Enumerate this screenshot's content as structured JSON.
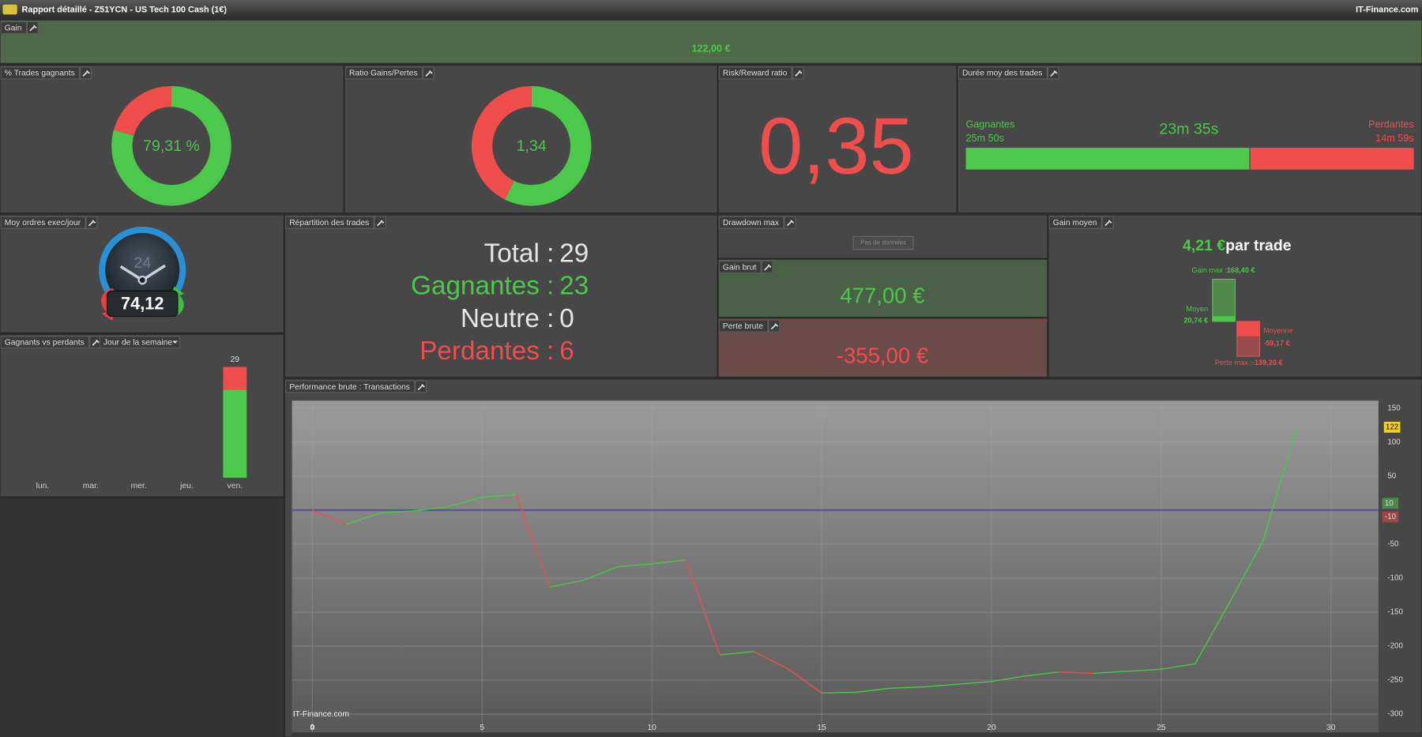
{
  "window": {
    "title": "Rapport détaillé - Z51YCN - US Tech 100 Cash (1€)",
    "brand": "IT-Finance.com"
  },
  "panels": {
    "gain": {
      "label": "Gain",
      "value": "122,00 €"
    },
    "win_rate": {
      "label": "% Trades gagnants",
      "chart": {
        "type": "donut",
        "values": [
          79.31,
          20.69
        ],
        "colors": [
          "#4cc84a",
          "#f04d4d"
        ],
        "center_label": "79,31 %"
      }
    },
    "ratio": {
      "label": "Ratio Gains/Pertes",
      "chart": {
        "type": "donut",
        "values": [
          477,
          355
        ],
        "colors": [
          "#4cc84a",
          "#f04d4d"
        ],
        "center_label": "1,34"
      }
    },
    "risk_reward": {
      "label": "Risk/Reward ratio",
      "value": "0,35"
    },
    "duration": {
      "label": "Durée moy des trades",
      "winning_label": "Gagnantes",
      "winning_value": "25m 50s",
      "average": "23m 35s",
      "losing_label": "Perdantes",
      "losing_value": "14m 59s",
      "chart": {
        "type": "split-bar",
        "values": [
          1550,
          899
        ],
        "colors": [
          "#4cc84a",
          "#f04d4d"
        ]
      }
    },
    "orders": {
      "label": "Moy ordres exec/jour",
      "value": "74,12",
      "dial": "24"
    },
    "winners_losers": {
      "label": "Gagnants vs perdants",
      "filter": "Jour de la semaine",
      "chart": {
        "type": "stacked-bar",
        "categories": [
          "lun.",
          "mar.",
          "mer.",
          "jeu.",
          "ven."
        ],
        "series": [
          {
            "color": "#4cc84a",
            "values": [
              0,
              0,
              0,
              0,
              23
            ]
          },
          {
            "color": "#f04d4d",
            "values": [
              0,
              0,
              0,
              0,
              6
            ]
          }
        ],
        "totals": [
          null,
          null,
          null,
          null,
          29
        ],
        "ylim": [
          0,
          32
        ]
      }
    },
    "distribution": {
      "label": "Répartition des trades",
      "rows": [
        {
          "label": "Total :",
          "value": 29,
          "color": "#e6e6e6"
        },
        {
          "label": "Gagnantes :",
          "value": 23,
          "color": "#4cc84a"
        },
        {
          "label": "Neutre :",
          "value": 0,
          "color": "#e6e6e6"
        },
        {
          "label": "Perdantes :",
          "value": 6,
          "color": "#f04d4d"
        }
      ]
    },
    "drawdown": {
      "label": "Drawdown max",
      "button": "Pas de données"
    },
    "gross_gain": {
      "label": "Gain brut",
      "value": "477,00 €"
    },
    "gross_loss": {
      "label": "Perte brute",
      "value": "-355,00 €"
    },
    "average_gain": {
      "label": "Gain moyen",
      "value": "4,21 €",
      "unit": "par trade",
      "chart": {
        "type": "range-bar",
        "ylim": [
          -145,
          172
        ],
        "max_gain_label": "Gain max :",
        "max_gain": 168.4,
        "max_gain_text": "168,40 €",
        "avg_gain_label": "Moyen",
        "avg_gain": 20.74,
        "avg_gain_text": "20,74 €",
        "avg_loss_label": "Moyenne",
        "avg_loss": -59.17,
        "avg_loss_text": "-59,17 €",
        "max_loss_label": "Perte max :",
        "max_loss": -139.2,
        "max_loss_text": "-139,20 €"
      }
    },
    "performance": {
      "label": "Performance brute : Transactions",
      "watermark": "IT-Finance.com",
      "chart": {
        "type": "line",
        "x": [
          0,
          1,
          2,
          3,
          4,
          5,
          6,
          7,
          8,
          9,
          10,
          11,
          12,
          13,
          14,
          15,
          16,
          17,
          18,
          19,
          20,
          21,
          22,
          23,
          24,
          25,
          26,
          27,
          28,
          29
        ],
        "values": [
          0,
          -21,
          -4,
          -1,
          5,
          19,
          23,
          -113,
          -103,
          -83,
          -79,
          -73,
          -213,
          -208,
          -233,
          -269,
          -268,
          -262,
          -260,
          -256,
          -252,
          -244,
          -238,
          -240,
          -237,
          -234,
          -226,
          -137,
          -45,
          122
        ],
        "xlim": [
          -0.6,
          31.4
        ],
        "xticks": [
          0,
          5,
          10,
          15,
          20,
          25,
          30
        ],
        "ylim": [
          -327,
          161
        ],
        "yticks": [
          150,
          100,
          50,
          -50,
          -100,
          -150,
          -200,
          -250,
          -300
        ],
        "grid": true,
        "baseline": 0,
        "baseline_color": "#2a2ad8",
        "up_color": "#4cc84a",
        "down_color": "#f04d4d",
        "markers": [
          {
            "value": 10,
            "label": "10",
            "color": "#4a8a4a"
          },
          {
            "value": -10,
            "label": "-10",
            "color": "#a04545"
          }
        ],
        "last_label": {
          "value": 122,
          "label": "122",
          "color": "#f2d21b"
        }
      }
    }
  }
}
